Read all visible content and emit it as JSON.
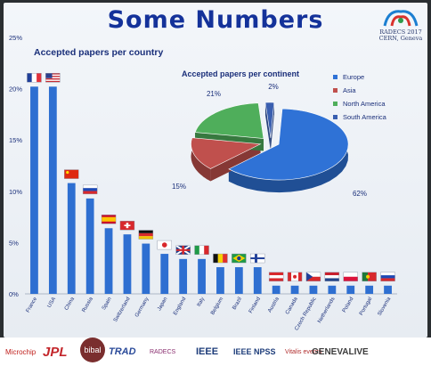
{
  "slide": {
    "title": "Some Numbers"
  },
  "logo": {
    "line1": "RADECS 2017",
    "line2": "CERN, Geneva"
  },
  "chart_data": [
    {
      "type": "bar",
      "title": "Accepted papers per country",
      "ylim": [
        0,
        25
      ],
      "yticks": [
        "0%",
        "5%",
        "10%",
        "15%",
        "20%",
        "25%"
      ],
      "grid": false,
      "color": "#2e6fd1",
      "categories": [
        "France",
        "USA",
        "China",
        "Russia",
        "Spain",
        "Switzerland",
        "Germany",
        "Japan",
        "England",
        "Italy",
        "Belgium",
        "Brazil",
        "Finland",
        "Austria",
        "Canada",
        "Czech Republic",
        "Netherlands",
        "Poland",
        "Portugal",
        "Slovenia"
      ],
      "values": [
        20.2,
        20.2,
        10.8,
        9.3,
        6.4,
        5.8,
        4.9,
        3.9,
        3.4,
        3.4,
        2.6,
        2.6,
        2.6,
        0.8,
        0.8,
        0.8,
        0.8,
        0.8,
        0.8,
        0.8
      ],
      "flags": [
        "france",
        "usa",
        "china",
        "russia",
        "spain",
        "switzerland",
        "germany",
        "japan",
        "england",
        "italy",
        "belgium",
        "brazil",
        "finland",
        "austria",
        "canada",
        "czech-republic",
        "netherlands",
        "poland",
        "portugal",
        "slovenia"
      ]
    },
    {
      "type": "pie",
      "title": "Accepted papers per continent",
      "legend_position": "right",
      "labels": [
        "Europe",
        "Asia",
        "North America",
        "South America"
      ],
      "values": [
        62,
        15,
        21,
        2
      ],
      "value_labels": [
        "62%",
        "15%",
        "21%",
        "2%"
      ],
      "colors": [
        "#2f72d6",
        "#c0504d",
        "#4fae5b",
        "#3a5fb0"
      ]
    }
  ],
  "sponsors": [
    "Microchip",
    "JPL",
    "bibal",
    "TRAD",
    "RADECS",
    "IEEE",
    "IEEE NPSS",
    "Vitalis events",
    "GENEVALIVE"
  ]
}
